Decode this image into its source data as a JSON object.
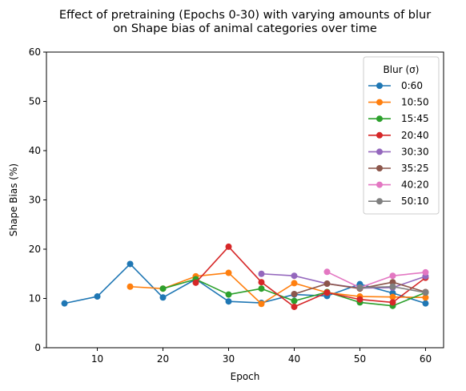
{
  "chart_data": {
    "type": "line",
    "title_line1": "Effect of pretraining (Epochs 0-30) with varying amounts of blur",
    "title_line2": "on Shape bias of animal categories over time",
    "xlabel": "Epoch",
    "ylabel": "Shape Bias (%)",
    "xlim": [
      2.25,
      62.75
    ],
    "ylim": [
      0,
      60
    ],
    "xticks": [
      10,
      20,
      30,
      40,
      50,
      60
    ],
    "yticks": [
      0,
      10,
      20,
      30,
      40,
      50,
      60
    ],
    "grid": false,
    "legend": {
      "title": "Blur (σ)",
      "placement": "top-right"
    },
    "series": [
      {
        "name": "0:60",
        "color": "#1f77b4",
        "points": [
          [
            5,
            9.0
          ],
          [
            10,
            10.4
          ],
          [
            15,
            17.0
          ],
          [
            20,
            10.2
          ],
          [
            25,
            13.9
          ],
          [
            30,
            9.4
          ],
          [
            35,
            9.1
          ],
          [
            40,
            10.8
          ],
          [
            45,
            10.5
          ],
          [
            50,
            12.9
          ],
          [
            55,
            11.1
          ],
          [
            60,
            9.0
          ]
        ]
      },
      {
        "name": "10:50",
        "color": "#ff7f0e",
        "points": [
          [
            15,
            12.4
          ],
          [
            20,
            12.0
          ],
          [
            25,
            14.5
          ],
          [
            30,
            15.2
          ],
          [
            35,
            8.9
          ],
          [
            40,
            13.1
          ],
          [
            45,
            11.2
          ],
          [
            50,
            10.4
          ],
          [
            55,
            10.3
          ],
          [
            60,
            10.2
          ]
        ]
      },
      {
        "name": "15:45",
        "color": "#2ca02c",
        "points": [
          [
            20,
            12.0
          ],
          [
            25,
            13.9
          ],
          [
            30,
            10.8
          ],
          [
            35,
            12.0
          ],
          [
            40,
            9.5
          ],
          [
            45,
            11.3
          ],
          [
            50,
            9.2
          ],
          [
            55,
            8.5
          ],
          [
            60,
            11.2
          ]
        ]
      },
      {
        "name": "20:40",
        "color": "#d62728",
        "points": [
          [
            25,
            13.2
          ],
          [
            30,
            20.5
          ],
          [
            35,
            13.3
          ],
          [
            40,
            8.3
          ],
          [
            45,
            11.2
          ],
          [
            50,
            9.8
          ],
          [
            55,
            9.2
          ],
          [
            60,
            14.2
          ]
        ]
      },
      {
        "name": "30:30",
        "color": "#9467bd",
        "points": [
          [
            35,
            15.0
          ],
          [
            40,
            14.6
          ],
          [
            45,
            13.0
          ],
          [
            50,
            12.1
          ],
          [
            55,
            12.2
          ],
          [
            60,
            14.5
          ]
        ]
      },
      {
        "name": "35:25",
        "color": "#8c564b",
        "points": [
          [
            40,
            10.9
          ],
          [
            45,
            13.0
          ],
          [
            50,
            12.0
          ],
          [
            55,
            13.3
          ],
          [
            60,
            11.3
          ]
        ]
      },
      {
        "name": "40:20",
        "color": "#e377c2",
        "points": [
          [
            45,
            15.4
          ],
          [
            50,
            12.2
          ],
          [
            55,
            14.6
          ],
          [
            60,
            15.3
          ]
        ]
      },
      {
        "name": "50:10",
        "color": "#7f7f7f",
        "points": [
          [
            50,
            12.2
          ],
          [
            55,
            12.4
          ],
          [
            60,
            11.2
          ]
        ]
      }
    ]
  }
}
